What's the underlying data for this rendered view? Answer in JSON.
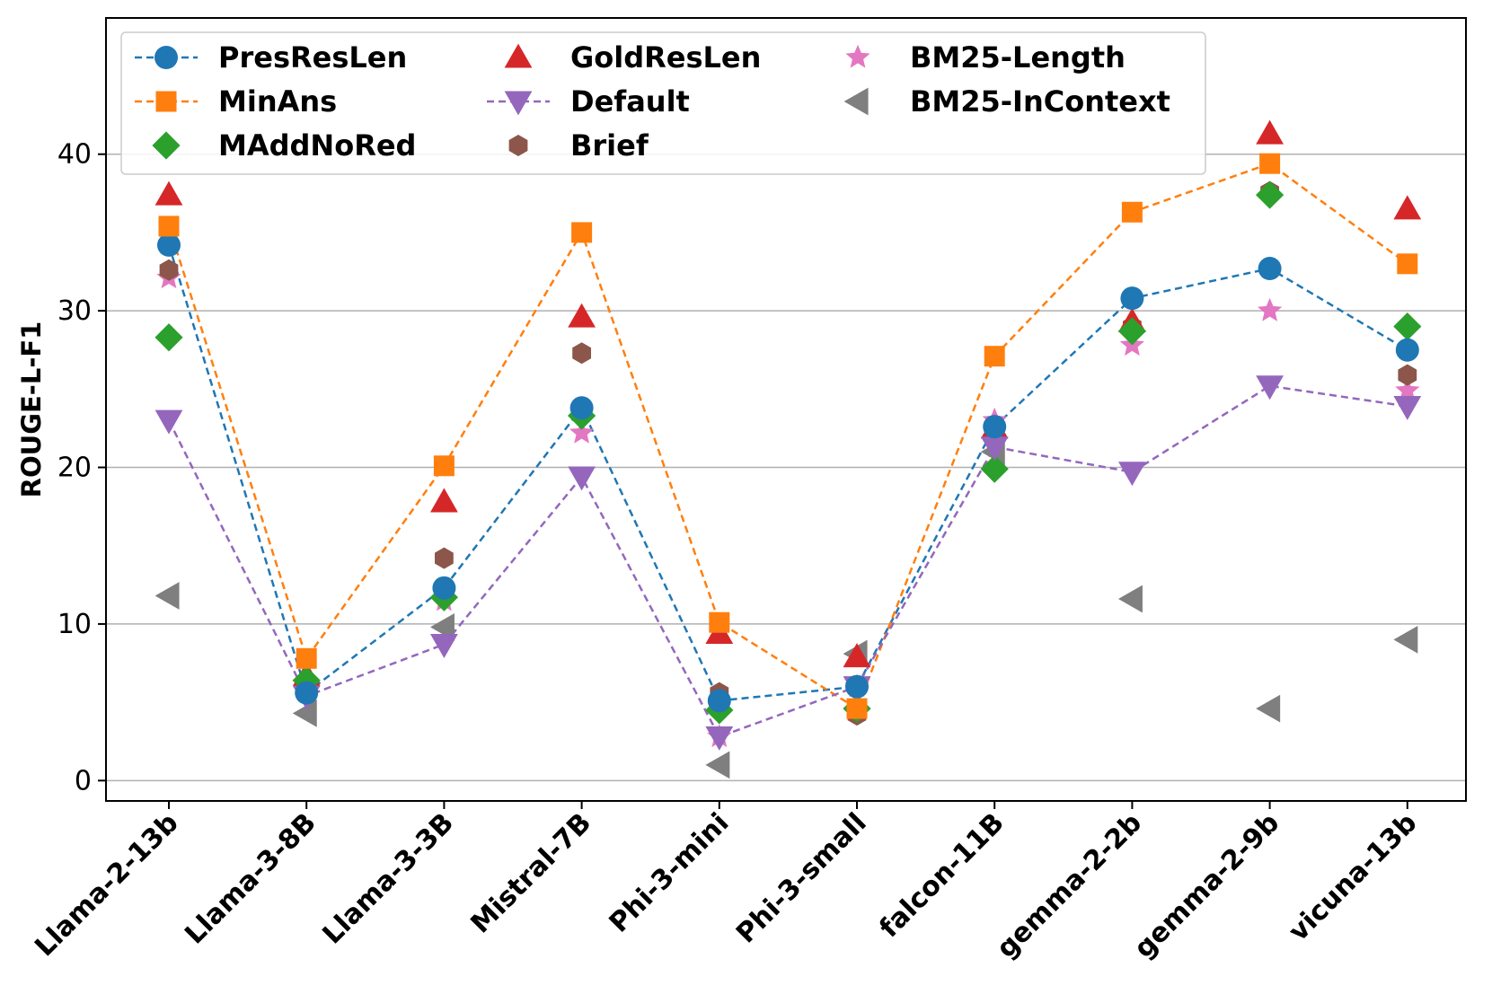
{
  "chart_data": {
    "type": "line",
    "title": "",
    "xlabel": "",
    "ylabel": "ROUGE-L-F1",
    "ylim": [
      -1.3,
      48.7
    ],
    "yticks": [
      0,
      10,
      20,
      30,
      40
    ],
    "grid": "y",
    "legend_position": "top",
    "categories": [
      "Llama-2-13b",
      "Llama-3-8B",
      "Llama-3-3B",
      "Mistral-7B",
      "Phi-3-mini",
      "Phi-3-small",
      "falcon-11B",
      "gemma-2-2b",
      "gemma-2-9b",
      "vicuna-13b"
    ],
    "series": [
      {
        "name": "PresResLen",
        "color": "#1f77b4",
        "marker": "circle",
        "line": true,
        "values": [
          34.2,
          5.6,
          12.3,
          23.8,
          5.1,
          6.0,
          22.6,
          30.8,
          32.7,
          27.5
        ]
      },
      {
        "name": "MinAns",
        "color": "#ff7f0e",
        "marker": "square",
        "line": true,
        "values": [
          35.4,
          7.8,
          20.1,
          35.0,
          10.1,
          4.6,
          27.1,
          36.3,
          39.4,
          33.0
        ]
      },
      {
        "name": "MAddNoRed",
        "color": "#2ca02c",
        "marker": "diamond",
        "line": false,
        "values": [
          28.3,
          6.4,
          11.7,
          23.3,
          4.5,
          4.6,
          19.9,
          28.7,
          37.4,
          29.0
        ]
      },
      {
        "name": "GoldResLen",
        "color": "#d62728",
        "marker": "triangle-up",
        "line": false,
        "values": [
          37.4,
          6.7,
          17.8,
          29.6,
          9.4,
          7.9,
          22.5,
          29.3,
          41.3,
          36.5
        ]
      },
      {
        "name": "Default",
        "color": "#9467bd",
        "marker": "triangle-down",
        "line": true,
        "values": [
          23.0,
          5.4,
          8.7,
          19.4,
          2.8,
          6.0,
          21.3,
          19.7,
          25.2,
          23.9
        ]
      },
      {
        "name": "Brief",
        "color": "#8c564b",
        "marker": "hexagon",
        "line": false,
        "values": [
          32.6,
          6.2,
          14.2,
          27.3,
          5.6,
          4.2,
          21.9,
          29.0,
          37.6,
          25.9
        ]
      },
      {
        "name": "BM25-Length",
        "color": "#e377c2",
        "marker": "star",
        "line": false,
        "values": [
          32.1,
          6.0,
          11.5,
          22.2,
          2.8,
          6.0,
          23.0,
          27.8,
          30.0,
          24.9
        ]
      },
      {
        "name": "BM25-InContext",
        "color": "#7f7f7f",
        "marker": "triangle-left",
        "line": false,
        "values": [
          11.8,
          4.3,
          9.8,
          null,
          1.0,
          8.1,
          21.0,
          11.6,
          4.6,
          9.0
        ]
      }
    ]
  }
}
